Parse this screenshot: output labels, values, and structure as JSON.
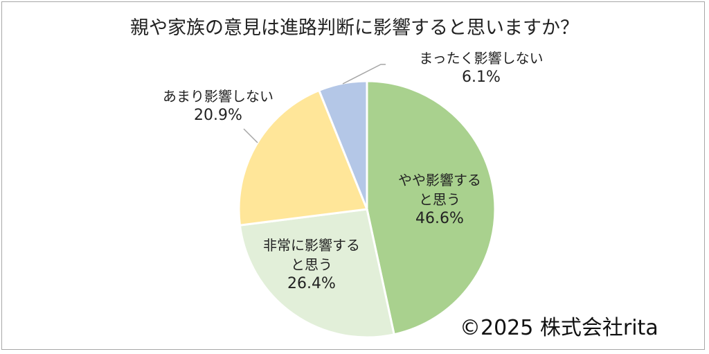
{
  "chart_data": {
    "type": "pie",
    "title": "親や家族の意見は進路判断に影響すると思いますか？",
    "start": "12 o'clock, clockwise",
    "slices": [
      {
        "label_lines": [
          "やや影響する",
          "と思う"
        ],
        "value": 46.6,
        "pct_label": "46.6%",
        "color": "#a9d18e"
      },
      {
        "label_lines": [
          "非常に影響する",
          "と思う"
        ],
        "value": 26.4,
        "pct_label": "26.4%",
        "color": "#e2efd9"
      },
      {
        "label_lines": [
          "あまり影響しない"
        ],
        "value": 20.9,
        "pct_label": "20.9%",
        "color": "#ffe699"
      },
      {
        "label_lines": [
          "まったく影響しない"
        ],
        "value": 6.1,
        "pct_label": "6.1%",
        "color": "#b4c7e7"
      }
    ]
  },
  "copyright": "©2025 株式会社rita"
}
